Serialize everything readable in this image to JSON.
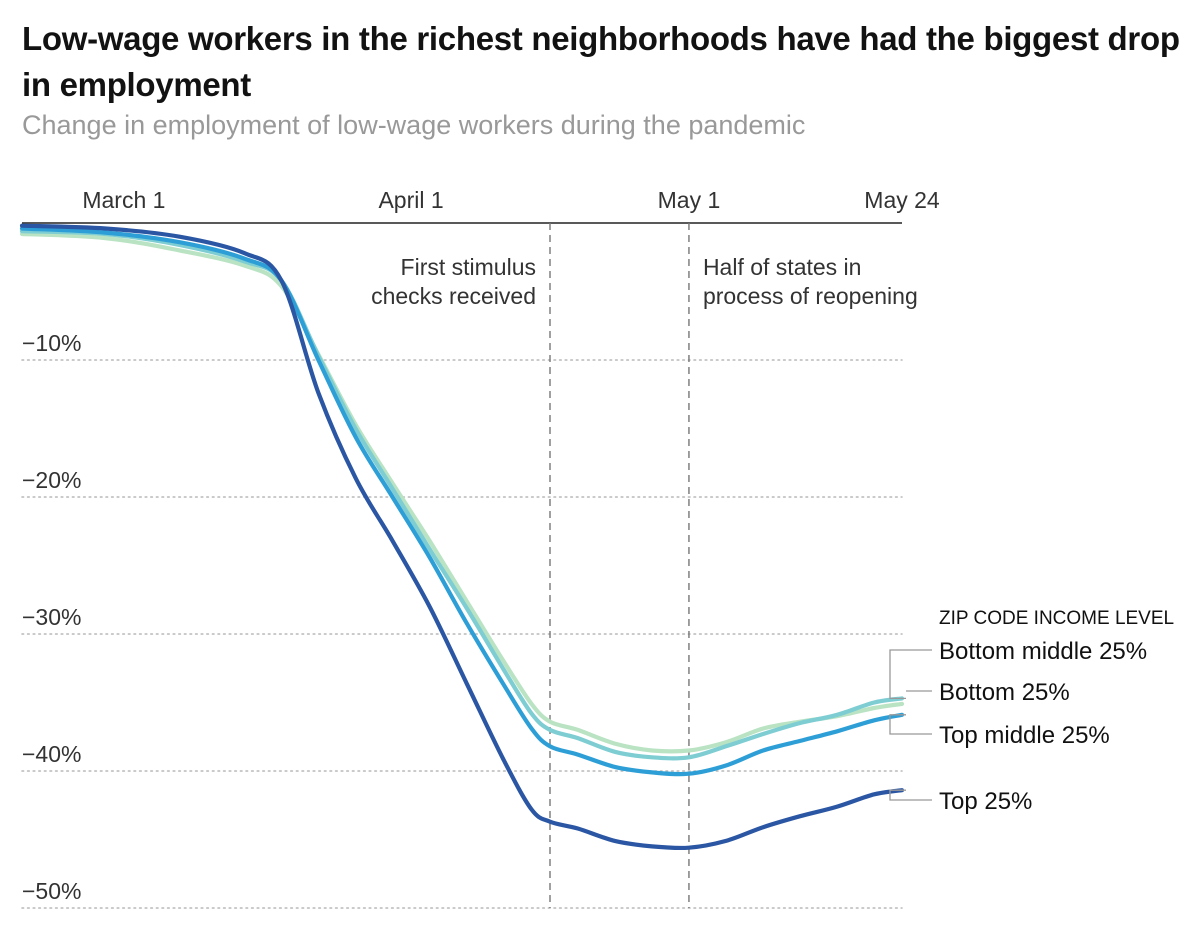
{
  "chart_data": {
    "type": "line",
    "title": "Low-wage workers in the richest neighborhoods have had the biggest drop in employment",
    "subtitle": "Change in employment of low-wage workers during the pandemic",
    "xlabel": "",
    "ylabel": "",
    "x_start": "2020-02-19",
    "x_end": "2020-05-24",
    "x_ticks": [
      {
        "date": "2020-03-01",
        "label": "March 1"
      },
      {
        "date": "2020-04-01",
        "label": "April 1"
      },
      {
        "date": "2020-05-01",
        "label": "May 1"
      },
      {
        "date": "2020-05-24",
        "label": "May 24"
      }
    ],
    "ylim": [
      -50,
      0
    ],
    "y_ticks": [
      {
        "value": -10,
        "label": "−10%"
      },
      {
        "value": -20,
        "label": "−20%"
      },
      {
        "value": -30,
        "label": "−30%"
      },
      {
        "value": -40,
        "label": "−40%"
      },
      {
        "value": -50,
        "label": "−50%"
      }
    ],
    "grid": true,
    "annotations": [
      {
        "date": "2020-04-16",
        "lines": [
          "First stimulus",
          "checks received"
        ],
        "align": "left"
      },
      {
        "date": "2020-05-01",
        "lines": [
          "Half of states in",
          "process of reopening"
        ],
        "align": "right"
      }
    ],
    "legend_title": "ZIP CODE INCOME LEVEL",
    "legend_position": "right",
    "series": [
      {
        "name": "Bottom middle 25%",
        "color": "#7dcdd3",
        "points": [
          [
            "2020-02-19",
            -0.6
          ],
          [
            "2020-02-28",
            -0.8
          ],
          [
            "2020-03-07",
            -1.6
          ],
          [
            "2020-03-14",
            -2.8
          ],
          [
            "2020-03-18",
            -4.2
          ],
          [
            "2020-03-22",
            -9.7
          ],
          [
            "2020-03-26",
            -15.0
          ],
          [
            "2020-03-30",
            -19.4
          ],
          [
            "2020-04-03",
            -23.8
          ],
          [
            "2020-04-07",
            -28.1
          ],
          [
            "2020-04-11",
            -32.6
          ],
          [
            "2020-04-14",
            -35.8
          ],
          [
            "2020-04-16",
            -37.0
          ],
          [
            "2020-04-19",
            -37.6
          ],
          [
            "2020-04-23",
            -38.6
          ],
          [
            "2020-04-27",
            -39.0
          ],
          [
            "2020-05-01",
            -39.0
          ],
          [
            "2020-05-05",
            -38.2
          ],
          [
            "2020-05-09",
            -37.3
          ],
          [
            "2020-05-13",
            -36.5
          ],
          [
            "2020-05-17",
            -35.9
          ],
          [
            "2020-05-21",
            -35.0
          ],
          [
            "2020-05-24",
            -34.7
          ]
        ]
      },
      {
        "name": "Bottom 25%",
        "color": "#b9e3c3",
        "points": [
          [
            "2020-02-19",
            -0.8
          ],
          [
            "2020-02-28",
            -1.1
          ],
          [
            "2020-03-07",
            -2.0
          ],
          [
            "2020-03-14",
            -3.1
          ],
          [
            "2020-03-18",
            -4.6
          ],
          [
            "2020-03-22",
            -9.6
          ],
          [
            "2020-03-26",
            -14.7
          ],
          [
            "2020-03-30",
            -19.0
          ],
          [
            "2020-04-03",
            -23.2
          ],
          [
            "2020-04-07",
            -27.6
          ],
          [
            "2020-04-11",
            -32.0
          ],
          [
            "2020-04-14",
            -35.1
          ],
          [
            "2020-04-16",
            -36.4
          ],
          [
            "2020-04-19",
            -37.0
          ],
          [
            "2020-04-23",
            -38.0
          ],
          [
            "2020-04-27",
            -38.5
          ],
          [
            "2020-05-01",
            -38.5
          ],
          [
            "2020-05-05",
            -37.9
          ],
          [
            "2020-05-09",
            -36.9
          ],
          [
            "2020-05-13",
            -36.4
          ],
          [
            "2020-05-17",
            -36.0
          ],
          [
            "2020-05-21",
            -35.4
          ],
          [
            "2020-05-24",
            -35.1
          ]
        ]
      },
      {
        "name": "Top middle 25%",
        "color": "#2d9fd6",
        "points": [
          [
            "2020-02-19",
            -0.4
          ],
          [
            "2020-02-28",
            -0.7
          ],
          [
            "2020-03-07",
            -1.4
          ],
          [
            "2020-03-14",
            -2.6
          ],
          [
            "2020-03-18",
            -4.2
          ],
          [
            "2020-03-22",
            -10.0
          ],
          [
            "2020-03-26",
            -15.6
          ],
          [
            "2020-03-30",
            -20.0
          ],
          [
            "2020-04-03",
            -24.4
          ],
          [
            "2020-04-07",
            -29.2
          ],
          [
            "2020-04-11",
            -33.7
          ],
          [
            "2020-04-14",
            -36.9
          ],
          [
            "2020-04-16",
            -38.2
          ],
          [
            "2020-04-19",
            -38.8
          ],
          [
            "2020-04-23",
            -39.7
          ],
          [
            "2020-04-27",
            -40.1
          ],
          [
            "2020-05-01",
            -40.2
          ],
          [
            "2020-05-05",
            -39.6
          ],
          [
            "2020-05-09",
            -38.5
          ],
          [
            "2020-05-13",
            -37.8
          ],
          [
            "2020-05-17",
            -37.1
          ],
          [
            "2020-05-21",
            -36.3
          ],
          [
            "2020-05-24",
            -35.9
          ]
        ]
      },
      {
        "name": "Top 25%",
        "color": "#2a56a3",
        "points": [
          [
            "2020-02-19",
            -0.2
          ],
          [
            "2020-02-28",
            -0.4
          ],
          [
            "2020-03-07",
            -1.0
          ],
          [
            "2020-03-14",
            -2.2
          ],
          [
            "2020-03-18",
            -4.2
          ],
          [
            "2020-03-22",
            -12.4
          ],
          [
            "2020-03-26",
            -18.6
          ],
          [
            "2020-03-30",
            -23.2
          ],
          [
            "2020-04-03",
            -28.0
          ],
          [
            "2020-04-07",
            -33.6
          ],
          [
            "2020-04-11",
            -39.2
          ],
          [
            "2020-04-14",
            -42.8
          ],
          [
            "2020-04-16",
            -43.7
          ],
          [
            "2020-04-19",
            -44.2
          ],
          [
            "2020-04-23",
            -45.1
          ],
          [
            "2020-04-27",
            -45.5
          ],
          [
            "2020-05-01",
            -45.6
          ],
          [
            "2020-05-05",
            -45.1
          ],
          [
            "2020-05-09",
            -44.1
          ],
          [
            "2020-05-13",
            -43.3
          ],
          [
            "2020-05-17",
            -42.6
          ],
          [
            "2020-05-21",
            -41.7
          ],
          [
            "2020-05-24",
            -41.4
          ]
        ]
      }
    ]
  }
}
